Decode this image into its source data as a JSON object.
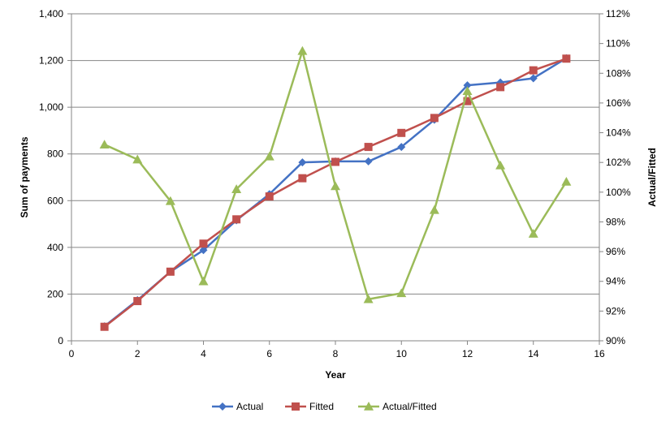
{
  "chart_data": {
    "type": "line",
    "title": "",
    "xlabel": "Year",
    "ylabel": "Sum of payments",
    "y2label": "Actual/Fitted",
    "xlim": [
      0,
      16
    ],
    "ylim": [
      0,
      1400
    ],
    "y2lim": [
      0.9,
      1.12
    ],
    "xticks": [
      0,
      2,
      4,
      6,
      8,
      10,
      12,
      14,
      16
    ],
    "xtick_labels": [
      "0",
      "2",
      "4",
      "6",
      "8",
      "10",
      "12",
      "14",
      "16"
    ],
    "yticks": [
      0,
      200,
      400,
      600,
      800,
      1000,
      1200,
      1400
    ],
    "ytick_labels": [
      "0",
      "200",
      "400",
      "600",
      "800",
      "1,000",
      "1,200",
      "1,400"
    ],
    "y2ticks": [
      0.9,
      0.92,
      0.94,
      0.96,
      0.98,
      1.0,
      1.02,
      1.04,
      1.06,
      1.08,
      1.1,
      1.12
    ],
    "y2tick_labels": [
      "90%",
      "92%",
      "94%",
      "96%",
      "98%",
      "100%",
      "102%",
      "104%",
      "106%",
      "108%",
      "110%",
      "112%"
    ],
    "grid": "horizontal",
    "legend_position": "bottom",
    "x": [
      1,
      2,
      3,
      4,
      5,
      6,
      7,
      8,
      9,
      10,
      11,
      12,
      13,
      14,
      15
    ],
    "series": [
      {
        "name": "Actual",
        "axis": "left",
        "color": "#4472C4",
        "marker": "diamond",
        "values": [
          62,
          174,
          296,
          388,
          516,
          628,
          764,
          768,
          768,
          830,
          946,
          1094,
          1106,
          1124,
          1210
        ]
      },
      {
        "name": "Fitted",
        "axis": "left",
        "color": "#C0504D",
        "marker": "square",
        "values": [
          60,
          170,
          296,
          416,
          520,
          618,
          696,
          766,
          830,
          890,
          954,
          1026,
          1086,
          1158,
          1208
        ]
      },
      {
        "name": "Actual/Fitted",
        "axis": "right",
        "color": "#9BBB59",
        "marker": "triangle",
        "values": [
          1.032,
          1.022,
          0.994,
          0.94,
          1.002,
          1.024,
          1.095,
          1.004,
          0.928,
          0.932,
          0.988,
          1.068,
          1.018,
          0.972,
          1.007
        ]
      }
    ]
  }
}
